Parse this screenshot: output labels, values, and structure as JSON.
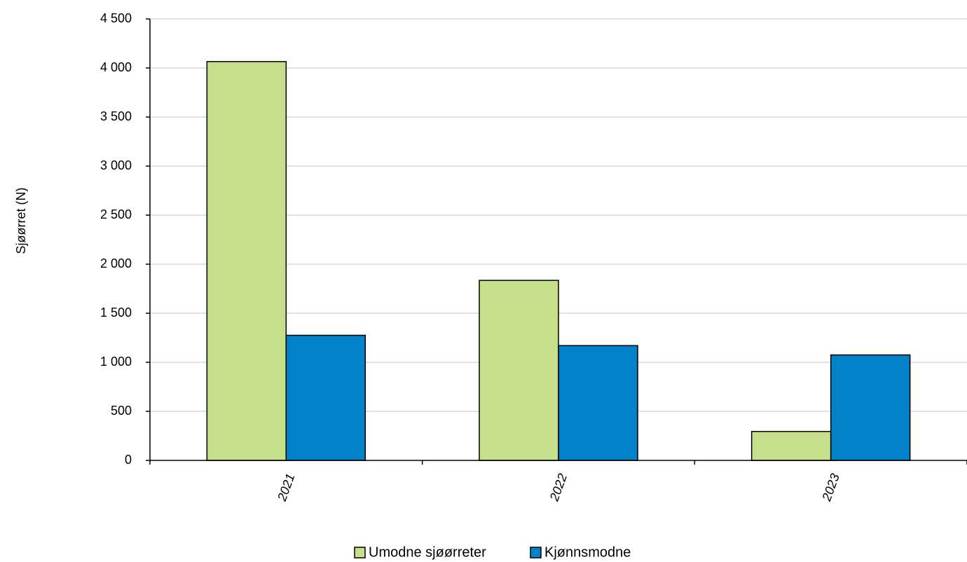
{
  "chart_data": {
    "type": "bar",
    "title": "",
    "xlabel": "",
    "ylabel": "Sjøørret (N)",
    "categories": [
      "2021",
      "2022",
      "2023"
    ],
    "series": [
      {
        "name": "Umodne sjøørreter",
        "color": "#c5df8b",
        "values": [
          4065,
          1835,
          295
        ]
      },
      {
        "name": "Kjønnsmodne",
        "color": "#0081c8",
        "values": [
          1275,
          1170,
          1075
        ]
      }
    ],
    "ylim": [
      0,
      4500
    ],
    "yticks": [
      "0",
      "500",
      "1 000",
      "1 500",
      "2 000",
      "2 500",
      "3 000",
      "3 500",
      "4 000",
      "4 500"
    ],
    "ytick_values": [
      0,
      500,
      1000,
      1500,
      2000,
      2500,
      3000,
      3500,
      4000,
      4500
    ],
    "grid": true,
    "legend_position": "bottom-center"
  }
}
